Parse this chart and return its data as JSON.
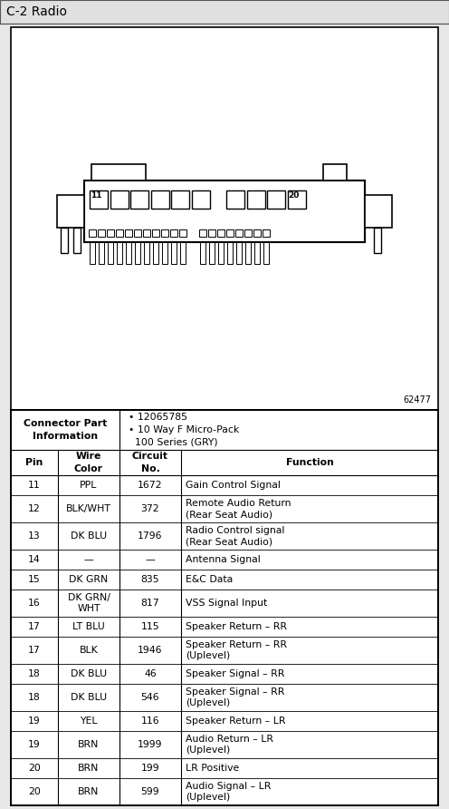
{
  "title": "C-2 Radio",
  "title_bg": "#e0e0e0",
  "diagram_number": "62477",
  "connector_info_right": [
    "• 12065785",
    "• 10 Way F Micro-Pack",
    "  100 Series (GRY)"
  ],
  "rows": [
    [
      "11",
      "PPL",
      "1672",
      "Gain Control Signal"
    ],
    [
      "12",
      "BLK/WHT",
      "372",
      "Remote Audio Return\n(Rear Seat Audio)"
    ],
    [
      "13",
      "DK BLU",
      "1796",
      "Radio Control signal\n(Rear Seat Audio)"
    ],
    [
      "14",
      "—",
      "—",
      "Antenna Signal"
    ],
    [
      "15",
      "DK GRN",
      "835",
      "E&C Data"
    ],
    [
      "16",
      "DK GRN/\nWHT",
      "817",
      "VSS Signal Input"
    ],
    [
      "17",
      "LT BLU",
      "115",
      "Speaker Return – RR"
    ],
    [
      "17",
      "BLK",
      "1946",
      "Speaker Return – RR\n(Uplevel)"
    ],
    [
      "18",
      "DK BLU",
      "46",
      "Speaker Signal – RR"
    ],
    [
      "18",
      "DK BLU",
      "546",
      "Speaker Signal – RR\n(Uplevel)"
    ],
    [
      "19",
      "YEL",
      "116",
      "Speaker Return – LR"
    ],
    [
      "19",
      "BRN",
      "1999",
      "Audio Return – LR\n(Uplevel)"
    ],
    [
      "20",
      "BRN",
      "199",
      "LR Positive"
    ],
    [
      "20",
      "BRN",
      "599",
      "Audio Signal – LR\n(Uplevel)"
    ]
  ],
  "bg_color": "#e8e8e8",
  "font_size_title": 10,
  "font_size_table": 7.8,
  "font_size_small": 7.0
}
